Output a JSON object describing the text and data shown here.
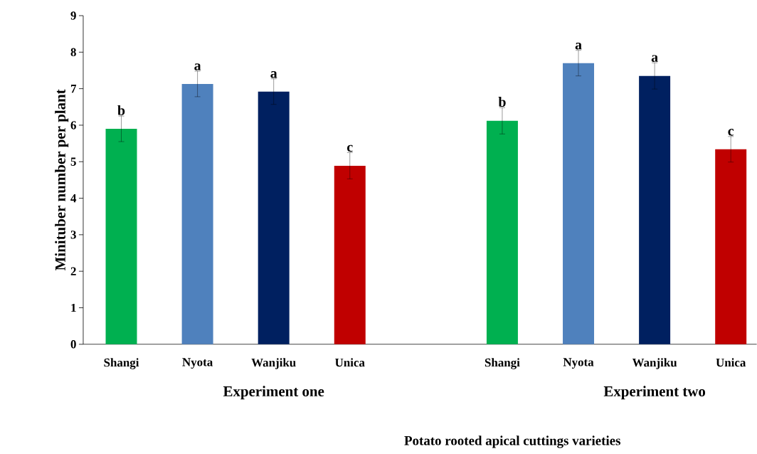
{
  "chart_data": {
    "type": "bar",
    "ylabel": "Minituber number per plant",
    "xlabel": "Potato rooted apical cuttings varieties",
    "categories": [
      "Shangi",
      "Nyota",
      "Wanjiku",
      "Unica",
      null,
      "Shangi",
      "Nyota",
      "Wanjiku",
      "Unica"
    ],
    "values": [
      5.9,
      7.13,
      6.92,
      4.89,
      null,
      6.12,
      7.7,
      7.35,
      5.34
    ],
    "errors": [
      0.35,
      0.35,
      0.35,
      0.36,
      null,
      0.36,
      0.35,
      0.36,
      0.35
    ],
    "colors": [
      "#00b050",
      "#4f81bd",
      "#002060",
      "#c00000",
      null,
      "#00b050",
      "#4f81bd",
      "#002060",
      "#c00000"
    ],
    "ylim": [
      0,
      9
    ],
    "yticks": [
      0,
      1,
      2,
      3,
      4,
      5,
      6,
      7,
      8,
      9
    ],
    "grid": false,
    "annotations": [
      {
        "text": "b",
        "y": 6.25
      },
      {
        "text": "a",
        "y": 7.48
      },
      {
        "text": "a",
        "y": 7.27
      },
      {
        "text": "c",
        "y": 5.25
      },
      {
        "text": "b",
        "y": 6.48
      },
      {
        "text": "a",
        "y": 8.05
      },
      {
        "text": "a",
        "y": 7.71
      },
      {
        "text": "c",
        "y": 5.69
      },
      "Experiment one",
      "Experiment two"
    ]
  }
}
